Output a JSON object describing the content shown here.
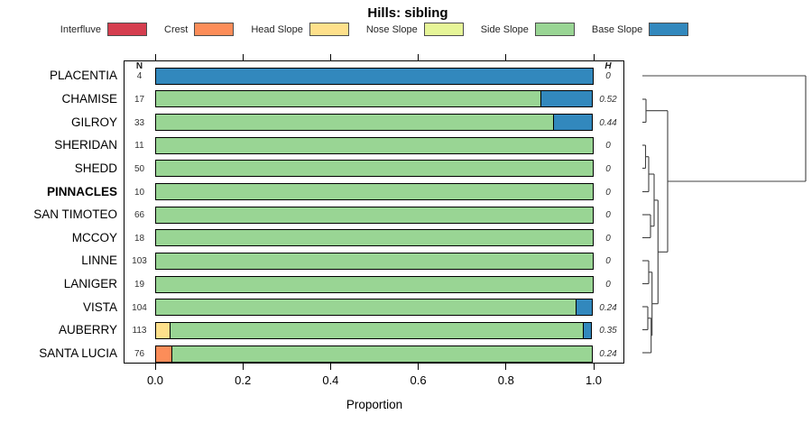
{
  "title": "Hills: sibling",
  "legend": [
    {
      "label": "Interfluve",
      "color": "#d53e4f"
    },
    {
      "label": "Crest",
      "color": "#fc8d59"
    },
    {
      "label": "Head Slope",
      "color": "#fee08b"
    },
    {
      "label": "Nose Slope",
      "color": "#e6f598"
    },
    {
      "label": "Side Slope",
      "color": "#99d594"
    },
    {
      "label": "Base Slope",
      "color": "#3288bd"
    }
  ],
  "chart_data": {
    "type": "bar",
    "subtype": "horizontal-stacked-proportion",
    "title": "Hills: sibling",
    "xlabel": "Proportion",
    "xlim": [
      0.0,
      1.0
    ],
    "xticks": [
      0.0,
      0.2,
      0.4,
      0.6,
      0.8,
      1.0
    ],
    "grid": false,
    "categories": [
      "Interfluve",
      "Crest",
      "Head Slope",
      "Nose Slope",
      "Side Slope",
      "Base Slope"
    ],
    "n_column_header": "N",
    "h_column_header": "H",
    "rows": [
      {
        "label": "PLACENTIA",
        "bold": false,
        "n": 4,
        "h": "0",
        "segments": [
          [
            "Base Slope",
            1.0
          ]
        ]
      },
      {
        "label": "CHAMISE",
        "bold": false,
        "n": 17,
        "h": "0.52",
        "segments": [
          [
            "Side Slope",
            0.88
          ],
          [
            "Base Slope",
            0.12
          ]
        ]
      },
      {
        "label": "GILROY",
        "bold": false,
        "n": 33,
        "h": "0.44",
        "segments": [
          [
            "Side Slope",
            0.91
          ],
          [
            "Base Slope",
            0.09
          ]
        ]
      },
      {
        "label": "SHERIDAN",
        "bold": false,
        "n": 11,
        "h": "0",
        "segments": [
          [
            "Side Slope",
            1.0
          ]
        ]
      },
      {
        "label": "SHEDD",
        "bold": false,
        "n": 50,
        "h": "0",
        "segments": [
          [
            "Side Slope",
            1.0
          ]
        ]
      },
      {
        "label": "PINNACLES",
        "bold": true,
        "n": 10,
        "h": "0",
        "segments": [
          [
            "Side Slope",
            1.0
          ]
        ]
      },
      {
        "label": "SAN TIMOTEO",
        "bold": false,
        "n": 66,
        "h": "0",
        "segments": [
          [
            "Side Slope",
            1.0
          ]
        ]
      },
      {
        "label": "MCCOY",
        "bold": false,
        "n": 18,
        "h": "0",
        "segments": [
          [
            "Side Slope",
            1.0
          ]
        ]
      },
      {
        "label": "LINNE",
        "bold": false,
        "n": 103,
        "h": "0",
        "segments": [
          [
            "Side Slope",
            1.0
          ]
        ]
      },
      {
        "label": "LANIGER",
        "bold": false,
        "n": 19,
        "h": "0",
        "segments": [
          [
            "Side Slope",
            1.0
          ]
        ]
      },
      {
        "label": "VISTA",
        "bold": false,
        "n": 104,
        "h": "0.24",
        "segments": [
          [
            "Side Slope",
            0.96
          ],
          [
            "Base Slope",
            0.04
          ]
        ]
      },
      {
        "label": "AUBERRY",
        "bold": false,
        "n": 113,
        "h": "0.35",
        "segments": [
          [
            "Head Slope",
            0.035
          ],
          [
            "Side Slope",
            0.945
          ],
          [
            "Base Slope",
            0.02
          ]
        ]
      },
      {
        "label": "SANTA LUCIA",
        "bold": false,
        "n": 76,
        "h": "0.24",
        "segments": [
          [
            "Crest",
            0.04
          ],
          [
            "Side Slope",
            0.96
          ]
        ]
      }
    ],
    "dendrogram": {
      "position": "right",
      "line_color": "#404040",
      "segments": [
        [
          712,
          84,
          893,
          84
        ],
        [
          712,
          110,
          716,
          110
        ],
        [
          712,
          135.5,
          716,
          135.5
        ],
        [
          716,
          110,
          716,
          135.5
        ],
        [
          716,
          122.7,
          740,
          122.7
        ],
        [
          712,
          161,
          715.5,
          161
        ],
        [
          712,
          186.5,
          715.5,
          186.5
        ],
        [
          715.5,
          161,
          715.5,
          186.5
        ],
        [
          715.5,
          173.7,
          719,
          173.7
        ],
        [
          712,
          212.5,
          719,
          212.5
        ],
        [
          719,
          173.7,
          719,
          212.5
        ],
        [
          719,
          193,
          725,
          193
        ],
        [
          712,
          238,
          721,
          238
        ],
        [
          712,
          263.5,
          721,
          263.5
        ],
        [
          721,
          238,
          721,
          263.5
        ],
        [
          721,
          250.7,
          725,
          250.7
        ],
        [
          725,
          193,
          725,
          250.7
        ],
        [
          725,
          221.9,
          729.3,
          221.9
        ],
        [
          712,
          289,
          719,
          289
        ],
        [
          712,
          314.5,
          719,
          314.5
        ],
        [
          719,
          289,
          719,
          314.5
        ],
        [
          719,
          301.7,
          722.7,
          301.7
        ],
        [
          712,
          340,
          718,
          340
        ],
        [
          712,
          365.5,
          718,
          365.5
        ],
        [
          718,
          340,
          718,
          365.5
        ],
        [
          718,
          352.7,
          721.7,
          352.7
        ],
        [
          712,
          391,
          721.7,
          391
        ],
        [
          721.7,
          352.7,
          721.7,
          391
        ],
        [
          721.7,
          371.8,
          722.7,
          371.8
        ],
        [
          722.7,
          301.7,
          722.7,
          371.8
        ],
        [
          722.7,
          336.7,
          729.3,
          336.7
        ],
        [
          729.3,
          221.9,
          729.3,
          336.7
        ],
        [
          729.3,
          279.3,
          740,
          279.3
        ],
        [
          740,
          122.7,
          740,
          279.3
        ],
        [
          740,
          201,
          893,
          201
        ],
        [
          893,
          84,
          893,
          201
        ]
      ]
    }
  }
}
